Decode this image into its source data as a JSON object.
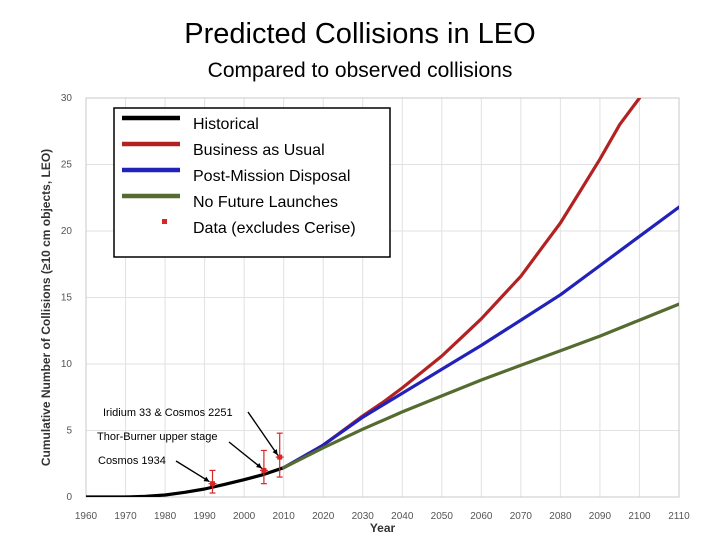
{
  "header": {
    "title": "Predicted Collisions in LEO",
    "subtitle": "Compared to observed collisions"
  },
  "chart_data": {
    "type": "line",
    "title": "Predicted Collisions in LEO",
    "subtitle": "Compared to observed collisions",
    "xlabel": "Year",
    "ylabel": "Cumulative Number of Collisions (≥10 cm objects, LEO)",
    "xlim": [
      1960,
      2110
    ],
    "ylim": [
      0,
      30
    ],
    "xticks": [
      1960,
      1970,
      1980,
      1990,
      2000,
      2010,
      2020,
      2030,
      2040,
      2050,
      2060,
      2070,
      2080,
      2090,
      2100,
      2110
    ],
    "yticks": [
      0,
      5,
      10,
      15,
      20,
      25,
      30
    ],
    "grid": true,
    "legend_position": "top-left",
    "series": [
      {
        "name": "Historical",
        "color": "#000000",
        "x": [
          1960,
          1970,
          1975,
          1980,
          1985,
          1990,
          1995,
          2000,
          2005,
          2010
        ],
        "y": [
          0,
          0,
          0.05,
          0.15,
          0.35,
          0.6,
          0.95,
          1.3,
          1.7,
          2.2
        ]
      },
      {
        "name": "Business as Usual",
        "color": "#b22222",
        "x": [
          2010,
          2015,
          2020,
          2025,
          2030,
          2035,
          2040,
          2045,
          2050,
          2055,
          2060,
          2065,
          2070,
          2075,
          2080,
          2085,
          2090,
          2095,
          2100
        ],
        "y": [
          2.2,
          3.0,
          3.9,
          5.0,
          6.1,
          7.1,
          8.2,
          9.4,
          10.6,
          12.0,
          13.4,
          15.0,
          16.6,
          18.6,
          20.6,
          23.0,
          25.4,
          28.0,
          30.0
        ]
      },
      {
        "name": "Post-Mission Disposal",
        "color": "#2222bb",
        "x": [
          2010,
          2020,
          2030,
          2040,
          2050,
          2060,
          2070,
          2080,
          2090,
          2100,
          2110
        ],
        "y": [
          2.2,
          3.9,
          6.0,
          7.8,
          9.6,
          11.4,
          13.3,
          15.2,
          17.4,
          19.6,
          21.8
        ]
      },
      {
        "name": "No Future Launches",
        "color": "#556b2f",
        "x": [
          2010,
          2020,
          2030,
          2040,
          2050,
          2060,
          2070,
          2080,
          2090,
          2100,
          2110
        ],
        "y": [
          2.2,
          3.7,
          5.1,
          6.4,
          7.6,
          8.8,
          9.9,
          11.0,
          12.1,
          13.3,
          14.5
        ]
      }
    ],
    "data_points": {
      "name": "Data (excludes Cerise)",
      "color": "#d62728",
      "points": [
        {
          "x": 1992,
          "y": 1.0,
          "y_low": 0.3,
          "y_high": 2.0,
          "label": "Cosmos 1934"
        },
        {
          "x": 2005,
          "y": 2.0,
          "y_low": 1.0,
          "y_high": 3.5,
          "label": "Thor-Burner upper stage"
        },
        {
          "x": 2009,
          "y": 3.0,
          "y_low": 1.5,
          "y_high": 4.8,
          "label": "Iridium 33 & Cosmos 2251"
        }
      ]
    }
  }
}
